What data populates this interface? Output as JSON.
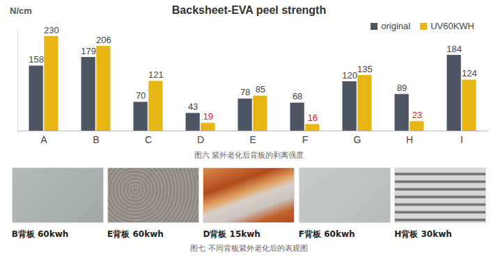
{
  "chart_data": {
    "type": "bar",
    "title": "Backsheet-EVA peel strength",
    "ylabel": "N/cm",
    "caption": "图六 紫外老化后背板的剥离强度",
    "categories": [
      "A",
      "B",
      "C",
      "D",
      "E",
      "F",
      "G",
      "H",
      "I"
    ],
    "series": [
      {
        "name": "original",
        "color": "#4d5563",
        "values": [
          158,
          179,
          70,
          43,
          78,
          68,
          120,
          89,
          184
        ]
      },
      {
        "name": "UV60KWH",
        "color": "#e8b614",
        "values": [
          230,
          206,
          121,
          19,
          85,
          16,
          135,
          23,
          124
        ]
      }
    ],
    "ylim": [
      0,
      250
    ],
    "data_labels": true,
    "tick_labels": "x",
    "legend": "top-right"
  },
  "figure_7": {
    "caption": "图七 不同背板紫外老化后的表观图",
    "panels": [
      "B背板 60kwh",
      "E背板 60kwh",
      "D背板 15kwh",
      "F背板 60kwh",
      "H背板 30kwh"
    ]
  }
}
